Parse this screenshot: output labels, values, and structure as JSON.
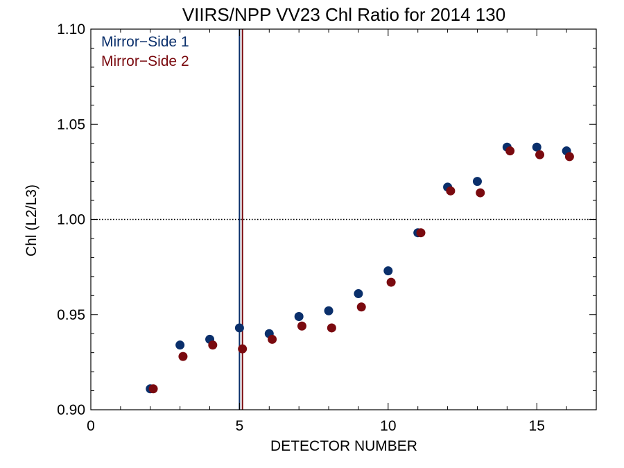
{
  "chart_data": {
    "type": "scatter",
    "title": "VIIRS/NPP VV23 Chl Ratio for 2014 130",
    "xlabel": "DETECTOR NUMBER",
    "ylabel": "Chl (L2/L3)",
    "xlim": [
      0,
      17
    ],
    "ylim": [
      0.9,
      1.1
    ],
    "xticks": [
      0,
      5,
      10,
      15
    ],
    "xtick_labels": [
      "0",
      "5",
      "10",
      "15"
    ],
    "yticks": [
      0.9,
      0.95,
      1.0,
      1.05,
      1.1
    ],
    "ytick_labels": [
      "0.90",
      "0.95",
      "1.00",
      "1.05",
      "1.10"
    ],
    "x_minor_step": 1,
    "y_minor_step": 0.01,
    "reference_line": {
      "y": 1.0,
      "style": "dotted"
    },
    "legend_position": "top-left",
    "series": [
      {
        "name": "Mirror−Side 1",
        "color": "#0a2f6b",
        "x": [
          2,
          3,
          4,
          5,
          6,
          7,
          8,
          9,
          10,
          11,
          12,
          13,
          14,
          15,
          16
        ],
        "y": [
          0.911,
          0.934,
          0.937,
          0.943,
          0.94,
          0.949,
          0.952,
          0.961,
          0.973,
          0.993,
          1.017,
          1.02,
          1.038,
          1.038,
          1.036
        ],
        "vline_x": 5.0
      },
      {
        "name": "Mirror−Side 2",
        "color": "#7a0a0f",
        "x": [
          2.1,
          3.1,
          4.1,
          5.1,
          6.1,
          7.1,
          8.1,
          9.1,
          10.1,
          11.1,
          12.1,
          13.1,
          14.1,
          15.1,
          16.1
        ],
        "y": [
          0.911,
          0.928,
          0.934,
          0.932,
          0.937,
          0.944,
          0.943,
          0.954,
          0.967,
          0.993,
          1.015,
          1.014,
          1.036,
          1.034,
          1.033
        ],
        "vline_x": 5.1
      }
    ]
  }
}
